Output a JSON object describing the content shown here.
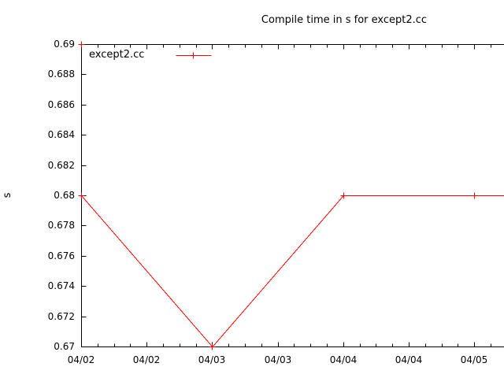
{
  "colors": {
    "background": "#ffffff",
    "axis": "#000000",
    "text": "#000000",
    "series_red": "#ff0000"
  },
  "chart_data": {
    "type": "line",
    "title": "Compile time in s for except2.cc",
    "xlabel": "",
    "ylabel": "s",
    "ylim": [
      0.67,
      0.69
    ],
    "y_tick_step": 0.002,
    "y_tick_labels": [
      "0.67",
      "0.672",
      "0.674",
      "0.676",
      "0.678",
      "0.68",
      "0.682",
      "0.684",
      "0.686",
      "0.688",
      "0.69"
    ],
    "x_tick_labels": [
      "04/02",
      "04/02",
      "04/03",
      "04/03",
      "04/04",
      "04/04",
      "04/05"
    ],
    "x_major_every_hours": 12,
    "x_minor_every_hours": 3,
    "grid": false,
    "legend": {
      "position": "top-left-inside",
      "label": "except2.cc"
    },
    "series": [
      {
        "name": "except2.cc",
        "color": "#ff0000",
        "marker": "plus",
        "points_hours_value": [
          [
            0,
            0.69
          ],
          [
            0,
            0.68
          ],
          [
            24,
            0.67
          ],
          [
            48,
            0.68
          ],
          [
            72,
            0.68
          ],
          [
            96,
            0.68
          ]
        ]
      }
    ]
  }
}
